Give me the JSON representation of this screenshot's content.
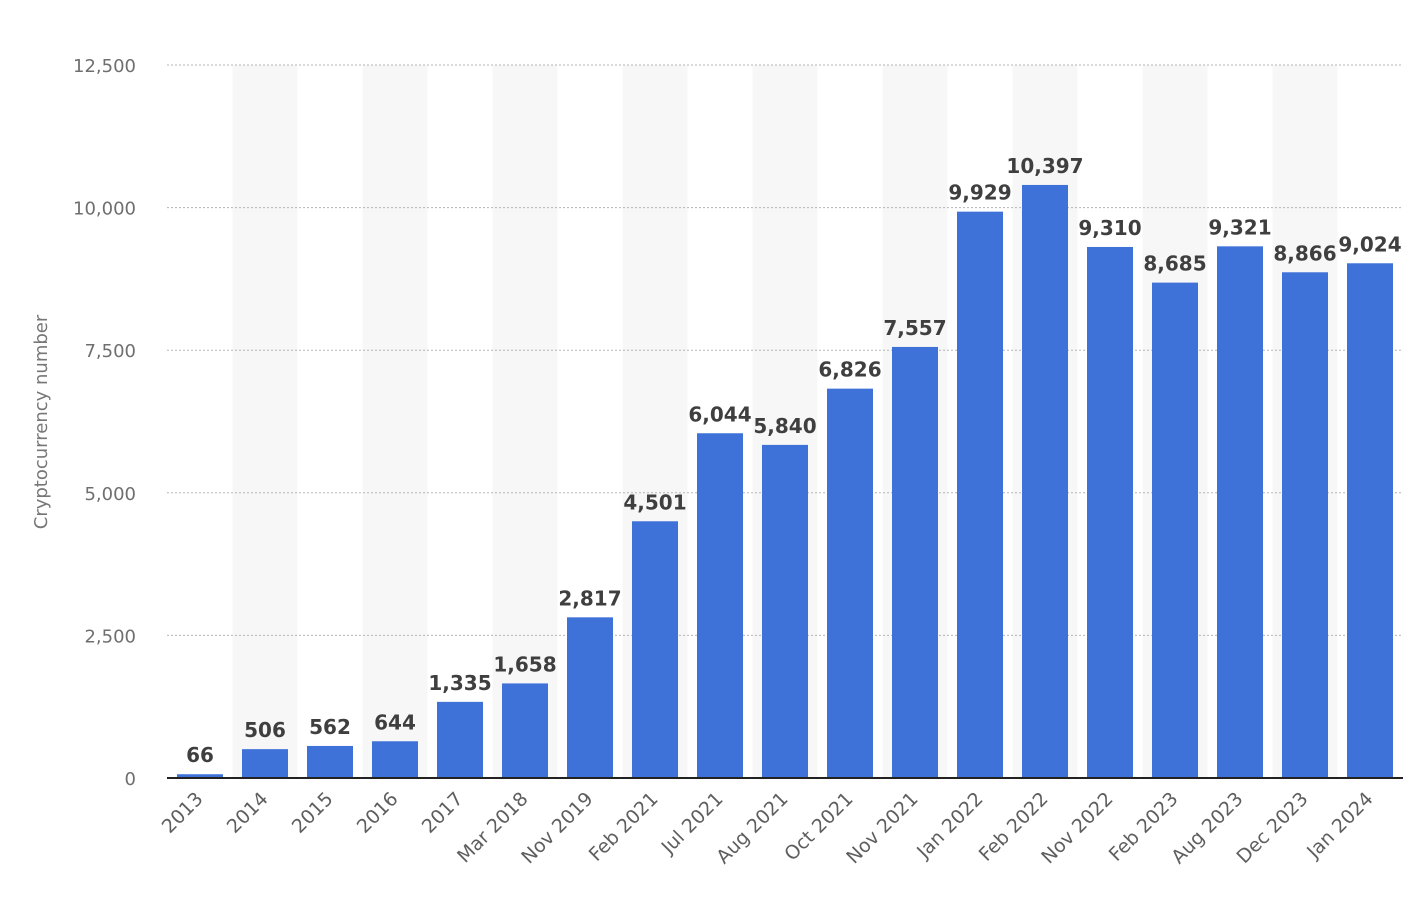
{
  "chart_data": {
    "type": "bar",
    "title": "",
    "xlabel": "",
    "ylabel": "Cryptocurrency number",
    "ylim": [
      0,
      12500
    ],
    "yticks": [
      0,
      2500,
      5000,
      7500,
      10000,
      12500
    ],
    "ytick_labels": [
      "0",
      "2,500",
      "5,000",
      "7,500",
      "10,000",
      "12,500"
    ],
    "grid": true,
    "categories": [
      "2013",
      "2014",
      "2015",
      "2016",
      "2017",
      "Mar 2018",
      "Nov 2019",
      "Feb 2021",
      "Jul 2021",
      "Aug 2021",
      "Oct 2021",
      "Nov 2021",
      "Jan 2022",
      "Feb 2022",
      "Nov 2022",
      "Feb 2023",
      "Aug 2023",
      "Dec 2023",
      "Jan 2024"
    ],
    "values": [
      66,
      506,
      562,
      644,
      1335,
      1658,
      2817,
      4501,
      6044,
      5840,
      6826,
      7557,
      9929,
      10397,
      9310,
      8685,
      9321,
      8866,
      9024
    ],
    "value_labels": [
      "66",
      "506",
      "562",
      "644",
      "1,335",
      "1,658",
      "2,817",
      "4,501",
      "6,044",
      "5,840",
      "6,826",
      "7,557",
      "9,929",
      "10,397",
      "9,310",
      "8,685",
      "9,321",
      "8,866",
      "9,024"
    ],
    "bar_color": "#3f72d8",
    "band_color": "#f7f7f7"
  }
}
